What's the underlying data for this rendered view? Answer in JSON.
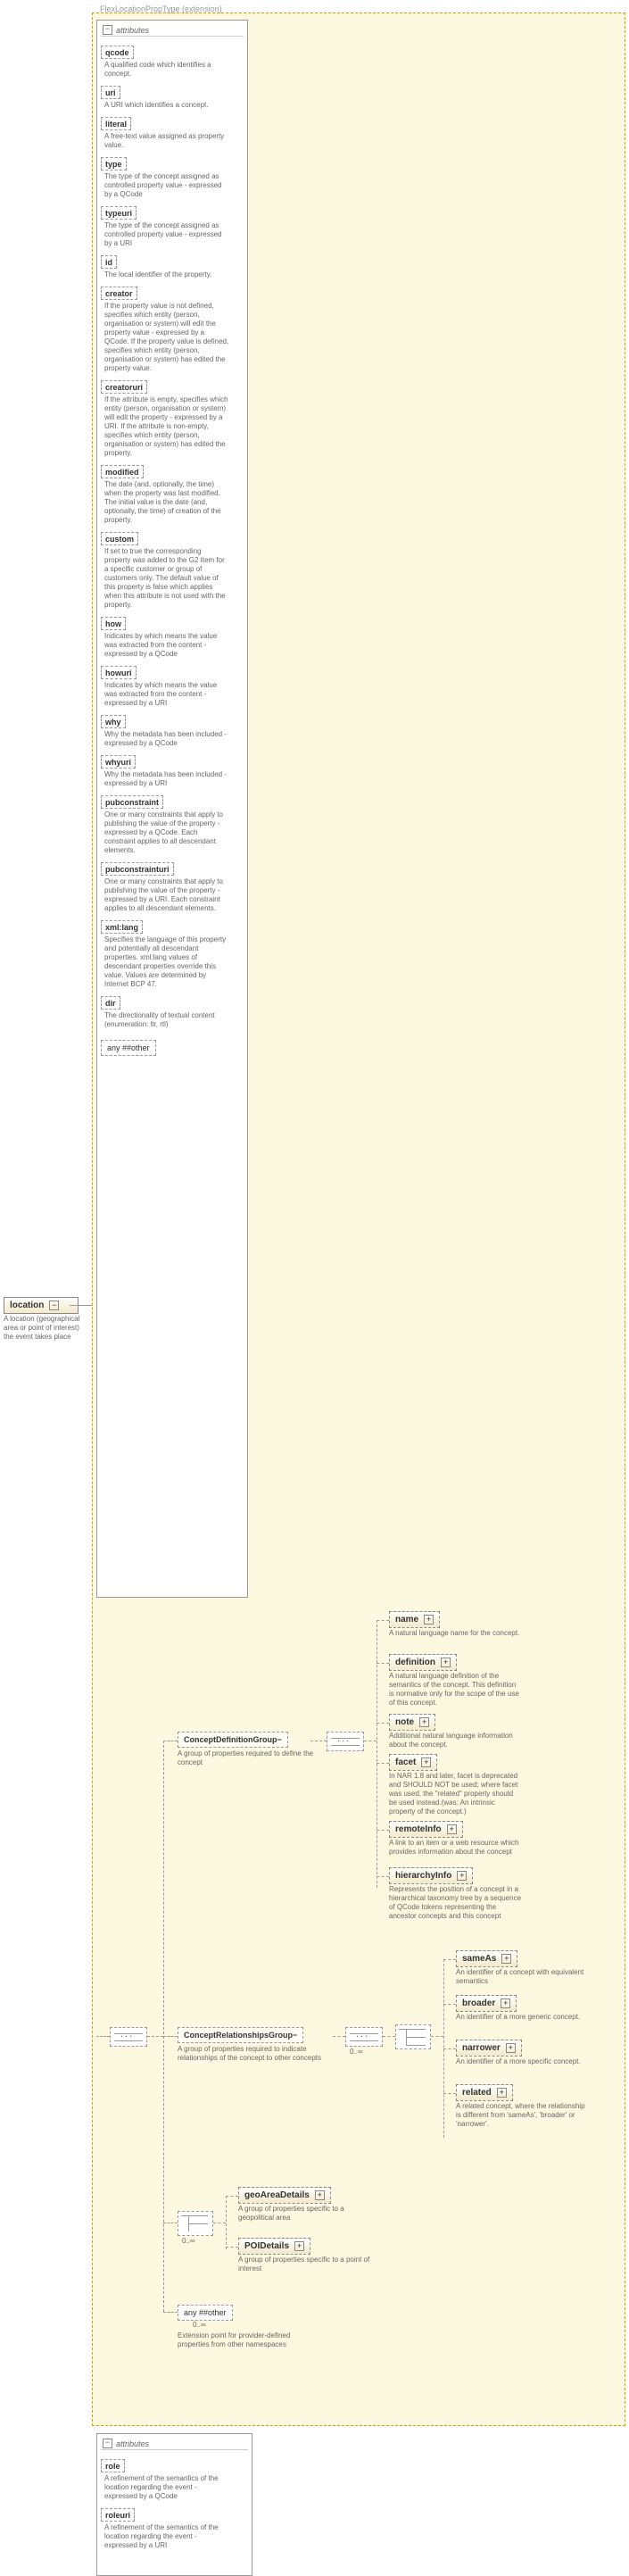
{
  "extension_label": "FlexLocationPropType (extension)",
  "root": {
    "name": "location",
    "desc": "A location (geographical area or point of interest) the event takes place"
  },
  "attr_title": "attributes",
  "attrs": [
    {
      "n": "qcode",
      "d": "A qualified code which identifies a concept."
    },
    {
      "n": "uri",
      "d": "A URI which identifies a concept."
    },
    {
      "n": "literal",
      "d": "A free-text value assigned as property value."
    },
    {
      "n": "type",
      "d": "The type of the concept assigned as controlled property value - expressed by a QCode"
    },
    {
      "n": "typeuri",
      "d": "The type of the concept assigned as controlled property value - expressed by a URI"
    },
    {
      "n": "id",
      "d": "The local identifier of the property."
    },
    {
      "n": "creator",
      "d": "If the property value is not defined, specifies which entity (person, organisation or system) will edit the property value - expressed by a QCode. If the property value is defined, specifies which entity (person, organisation or system) has edited the property value."
    },
    {
      "n": "creatoruri",
      "d": "If the attribute is empty, specifies which entity (person, organisation or system) will edit the property - expressed by a URI. If the attribute is non-empty, specifies which entity (person, organisation or system) has edited the property."
    },
    {
      "n": "modified",
      "d": "The date (and, optionally, the time) when the property was last modified. The initial value is the date (and, optionally, the time) of creation of the property."
    },
    {
      "n": "custom",
      "d": "If set to true the corresponding property was added to the G2 Item for a specific customer or group of customers only. The default value of this property is false which applies when this attribute is not used with the property."
    },
    {
      "n": "how",
      "d": "Indicates by which means the value was extracted from the content - expressed by a QCode"
    },
    {
      "n": "howuri",
      "d": "Indicates by which means the value was extracted from the content - expressed by a URI"
    },
    {
      "n": "why",
      "d": "Why the metadata has been included - expressed by a QCode"
    },
    {
      "n": "whyuri",
      "d": "Why the metadata has been included - expressed by a URI"
    },
    {
      "n": "pubconstraint",
      "d": "One or many constraints that apply to publishing the value of the property - expressed by a QCode. Each constraint applies to all descendant elements."
    },
    {
      "n": "pubconstrainturi",
      "d": "One or many constraints that apply to publishing the value of the property - expressed by a URI. Each constraint applies to all descendant elements."
    },
    {
      "n": "xml:lang",
      "d": "Specifies the language of this property and potentially all descendant properties. xml:lang values of descendant properties override this value. Values are determined by Internet BCP 47."
    },
    {
      "n": "dir",
      "d": "The directionality of textual content (enumeration: ltr, rtl)"
    }
  ],
  "any_attr": "any ##other",
  "groups": {
    "def": {
      "name": "ConceptDefinitionGroup",
      "desc": "A group of properties required to define the concept"
    },
    "rel": {
      "name": "ConceptRelationshipsGroup",
      "desc": "A group of properties required to indicate relationships of the concept to other concepts"
    }
  },
  "def_children": [
    {
      "n": "name",
      "d": "A natural language name for the concept."
    },
    {
      "n": "definition",
      "d": "A natural language definition of the semantics of the concept. This definition is normative only for the scope of the use of this concept."
    },
    {
      "n": "note",
      "d": "Additional natural language information about the concept."
    },
    {
      "n": "facet",
      "d": "In NAR 1.8 and later, facet is deprecated and SHOULD NOT be used; where facet was used, the \"related\" property should be used instead.(was: An intrinsic property of the concept.)"
    },
    {
      "n": "remoteInfo",
      "d": "A link to an item or a web resource which provides information about the concept"
    },
    {
      "n": "hierarchyInfo",
      "d": "Represents the position of a concept in a hierarchical taxonomy tree by a sequence of QCode tokens representing the ancestor concepts and this concept"
    }
  ],
  "rel_children": [
    {
      "n": "sameAs",
      "d": "An identifier of a concept with equivalent semantics"
    },
    {
      "n": "broader",
      "d": "An identifier of a more generic concept."
    },
    {
      "n": "narrower",
      "d": "An identifier of a more specific concept."
    },
    {
      "n": "related",
      "d": "A related concept, where the relationship is different from 'sameAs', 'broader' or 'narrower'."
    }
  ],
  "geo": [
    {
      "n": "geoAreaDetails",
      "d": "A group of properties specific to a geopolitical area"
    },
    {
      "n": "POIDetails",
      "d": "A group of properties specific to a point of interest"
    }
  ],
  "any_el": {
    "label": "any ##other",
    "card": "0..∞",
    "desc": "Extension point for provider-defined properties from other namespaces"
  },
  "role_attrs": [
    {
      "n": "role",
      "d": "A refinement of the semantics of the location regarding the event - expressed by a QCode"
    },
    {
      "n": "roleuri",
      "d": "A refinement of the semantics of the location regarding the event -expressed by a URI"
    }
  ],
  "card_0inf": "0..∞",
  "minus": "−",
  "plus": "+"
}
